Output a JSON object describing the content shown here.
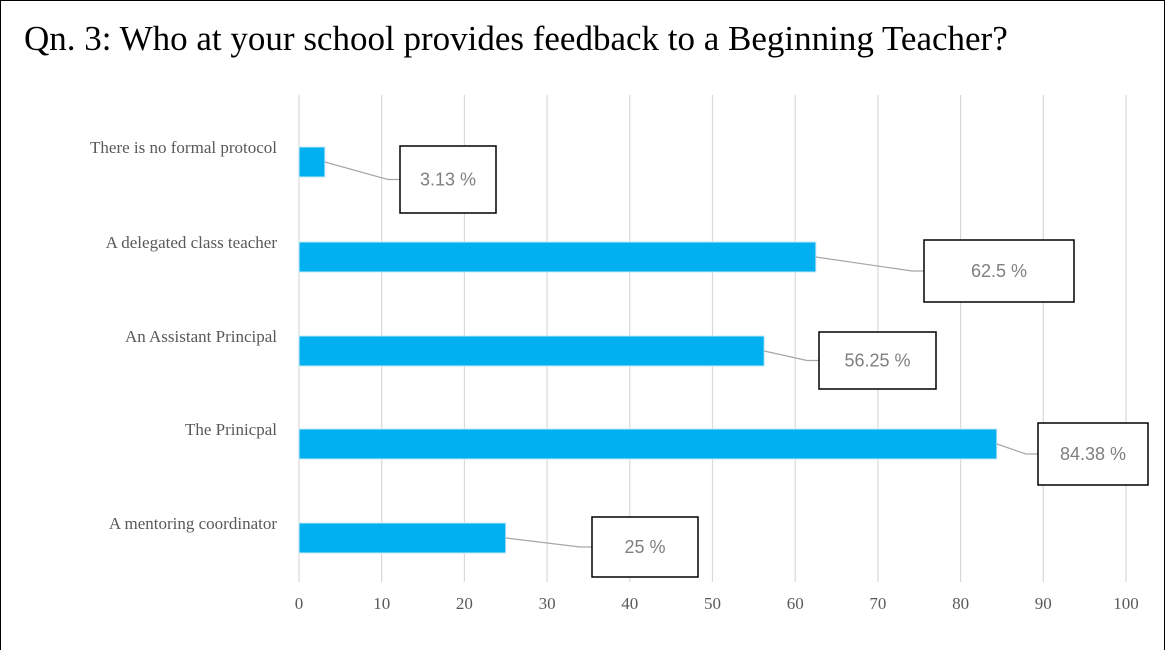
{
  "chart_data": {
    "type": "bar",
    "orientation": "horizontal",
    "title": "Qn. 3: Who at your school provides feedback to a Beginning Teacher?",
    "xlabel": "",
    "ylabel": "",
    "categories": [
      "There is no formal protocol",
      "A delegated class teacher",
      "An Assistant Principal",
      "The Prinicpal",
      "A mentoring coordinator"
    ],
    "values": [
      3.13,
      62.5,
      56.25,
      84.38,
      25
    ],
    "data_labels": [
      "3.13 %",
      "62.5 %",
      "56.25 %",
      "84.38 %",
      "25 %"
    ],
    "xlim": [
      0,
      100
    ],
    "xticks": [
      0,
      10,
      20,
      30,
      40,
      50,
      60,
      70,
      80,
      90,
      100
    ],
    "xtick_labels": [
      "0",
      "10",
      "20",
      "30",
      "40",
      "50",
      "60",
      "70",
      "80",
      "90",
      "100"
    ],
    "grid": "vertical",
    "legend": "none",
    "bar_color": "#00b0f0",
    "gridline_color": "#d9d9d9"
  }
}
